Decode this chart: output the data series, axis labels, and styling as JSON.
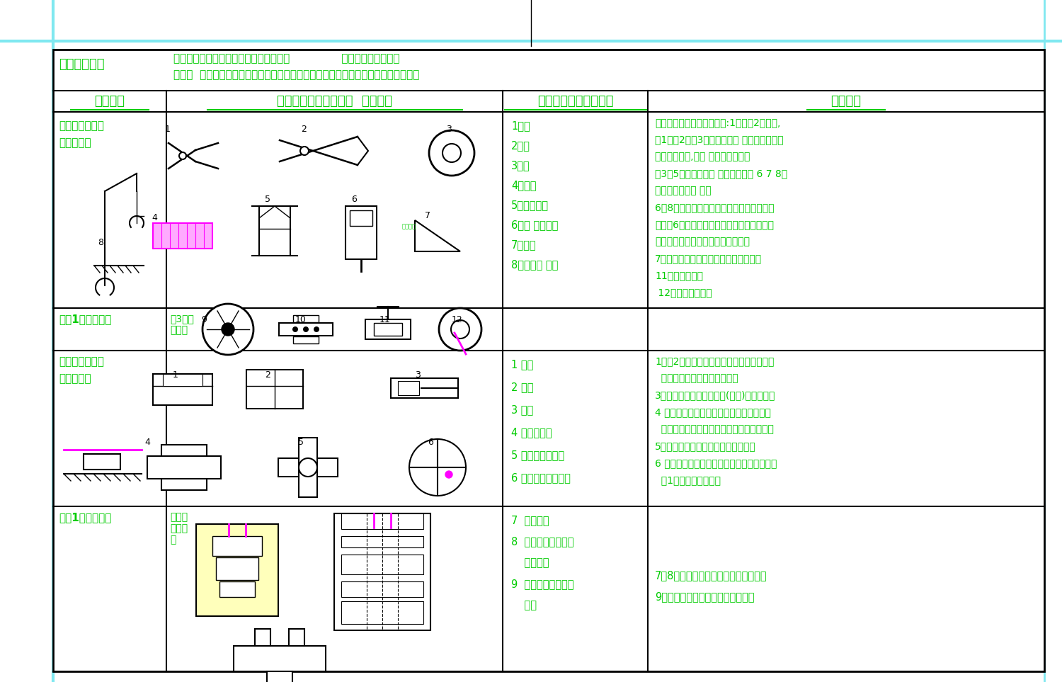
{
  "background_color": "#ffffff",
  "black_color": "#000000",
  "green_color": "#00cc00",
  "magenta_color": "#ff00ff",
  "cyan_color": "#80e8f0",
  "header_row": [
    "构件形式",
    "一元构件及移动副组合  组成举例",
    "一元转动基本构件应用",
    "组成解读"
  ],
  "top_label": "常用机构组成",
  "top_line1": "原理：从实际需要出发，按目的性去构思               动作原理和组成要素",
  "top_line2": "方法：  利用形象思维原理，从具体到抽象，从需要到现实，将构件和运动副巧妙组合",
  "row1_label1": "基本构件转动副",
  "row1_label2": "和转动构件",
  "row1_list": "1钳子\n2剪子\n3轮子\n4砖拿子\n5无极减速器\n6冲压 送料机构\n7分路器\n8吊钩防脱 机构",
  "row1_desc": "机件运动按形式分只有两种:1是转动2是移动,\n图1钳子2剪子3砖拿子都是两 个转动构件的组\n合，道理相同,只是 形态不同而已。\n图3、5是轮子和轮轴 同属转动构件 6 7 8是\n转动构件的具体 应用\n6、8两构件的功能借都助于弹簧构件实现其\n功能。6的构件组合结构利于调整该构件还借\n助于斜面组合才发挥出其功能原理。\n7分路导板是回转构件借助于位置和形态\n11手动起重葫芦\n 12汽车后桥差速器",
  "row2_label": "两杆1副转动机构",
  "row2_sublabel": "件3轮子\n的组合",
  "row3_label1": "基本构件移动副",
  "row3_label2": "和移动构件",
  "row3_list": "1 抽屉\n2 拉窗\n3 气缸\n4 机床导轨副\n5 十字滑块联轴器\n6 双滑块椭圆规机构",
  "row3_desc": "1抽屉2拉窗是家居类用品，实质是基本构件\n  移动副和移动构件的基本应用\n3气（油）缓冲缸是移动副(构件)的一种应用\n4 机床导轨就导轨来讲有滑动导轨滚动导轨\n  液压导轨磁悬浮导轨等但机构原理是相同的\n5十字滑块联轴器，是两个滑块的组合\n6 双滑块椭圆规机构是两直角移动副（构件）\n  加1联动杆构件的应用",
  "row4_label": "两杆1副移动机构",
  "row4_sublabel": "移动副\n组合应\n用",
  "row4_list": "7  型腔模具\n8  级进复合钣金冲压\n    折弯模具\n9  气动多变量机械手\n    机构",
  "row4_desc": "7、8为移动副（构件）在模具中的应用\n9是移动副几构件在机械手中的应用"
}
